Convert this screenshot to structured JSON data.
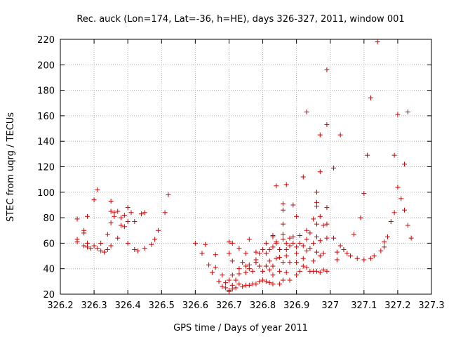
{
  "chart_data": {
    "type": "scatter",
    "title": "Rec. auck (Lon=174, Lat=-36, h=HE), days 326-327, 2011, window 001",
    "xlabel": "GPS time / Days of year 2011",
    "ylabel": "STEC from uqrg / TECUs",
    "xlim": [
      326.2,
      327.3
    ],
    "ylim": [
      20,
      220
    ],
    "xticks": [
      "326.2",
      "326.3",
      "326.4",
      "326.5",
      "326.6",
      "326.7",
      "326.8",
      "326.9",
      "327",
      "327.1",
      "327.2",
      "327.3"
    ],
    "yticks": [
      "20",
      "40",
      "60",
      "80",
      "100",
      "120",
      "140",
      "160",
      "180",
      "200",
      "220"
    ],
    "grid": true,
    "legend": "none",
    "marker": "plus",
    "color": "#d00000",
    "points": [
      [
        326.25,
        79
      ],
      [
        326.25,
        63
      ],
      [
        326.25,
        61
      ],
      [
        326.27,
        70
      ],
      [
        326.27,
        68
      ],
      [
        326.27,
        58
      ],
      [
        326.28,
        81
      ],
      [
        326.28,
        60
      ],
      [
        326.28,
        57
      ],
      [
        326.29,
        56
      ],
      [
        326.3,
        94
      ],
      [
        326.3,
        58
      ],
      [
        326.31,
        56
      ],
      [
        326.31,
        102
      ],
      [
        326.32,
        60
      ],
      [
        326.32,
        54
      ],
      [
        326.33,
        53
      ],
      [
        326.34,
        67
      ],
      [
        326.34,
        55
      ],
      [
        326.35,
        93
      ],
      [
        326.35,
        85
      ],
      [
        326.35,
        76
      ],
      [
        326.35,
        58
      ],
      [
        326.36,
        84
      ],
      [
        326.36,
        81
      ],
      [
        326.37,
        85
      ],
      [
        326.37,
        64
      ],
      [
        326.38,
        80
      ],
      [
        326.38,
        74
      ],
      [
        326.39,
        73
      ],
      [
        326.39,
        82
      ],
      [
        326.4,
        88
      ],
      [
        326.4,
        77
      ],
      [
        326.4,
        60
      ],
      [
        326.41,
        84
      ],
      [
        326.42,
        77
      ],
      [
        326.42,
        55
      ],
      [
        326.43,
        54
      ],
      [
        326.44,
        83
      ],
      [
        326.45,
        84
      ],
      [
        326.45,
        56
      ],
      [
        326.47,
        59
      ],
      [
        326.48,
        63
      ],
      [
        326.49,
        70
      ],
      [
        326.51,
        84
      ],
      [
        326.52,
        98
      ],
      [
        326.6,
        60
      ],
      [
        326.62,
        52
      ],
      [
        326.63,
        59
      ],
      [
        326.64,
        43
      ],
      [
        326.65,
        37
      ],
      [
        326.66,
        51
      ],
      [
        326.66,
        41
      ],
      [
        326.67,
        30
      ],
      [
        326.68,
        26
      ],
      [
        326.68,
        35
      ],
      [
        326.69,
        25
      ],
      [
        326.69,
        29
      ],
      [
        326.7,
        23
      ],
      [
        326.7,
        31
      ],
      [
        326.7,
        22
      ],
      [
        326.7,
        52
      ],
      [
        326.7,
        61
      ],
      [
        326.71,
        60
      ],
      [
        326.71,
        46
      ],
      [
        326.71,
        35
      ],
      [
        326.71,
        27
      ],
      [
        326.71,
        24
      ],
      [
        326.72,
        25
      ],
      [
        326.72,
        31
      ],
      [
        326.73,
        40
      ],
      [
        326.73,
        36
      ],
      [
        326.73,
        28
      ],
      [
        326.73,
        56
      ],
      [
        326.74,
        45
      ],
      [
        326.74,
        26
      ],
      [
        326.75,
        52
      ],
      [
        326.75,
        42
      ],
      [
        326.75,
        37
      ],
      [
        326.75,
        27
      ],
      [
        326.76,
        63
      ],
      [
        326.76,
        43
      ],
      [
        326.76,
        40
      ],
      [
        326.76,
        27
      ],
      [
        326.77,
        38
      ],
      [
        326.77,
        28
      ],
      [
        326.78,
        53
      ],
      [
        326.78,
        47
      ],
      [
        326.78,
        45
      ],
      [
        326.78,
        28
      ],
      [
        326.79,
        52
      ],
      [
        326.79,
        42
      ],
      [
        326.79,
        30
      ],
      [
        326.8,
        55
      ],
      [
        326.8,
        38
      ],
      [
        326.8,
        31
      ],
      [
        326.81,
        60
      ],
      [
        326.81,
        52
      ],
      [
        326.81,
        42
      ],
      [
        326.81,
        30
      ],
      [
        326.82,
        55
      ],
      [
        326.82,
        46
      ],
      [
        326.82,
        39
      ],
      [
        326.82,
        29
      ],
      [
        326.83,
        66
      ],
      [
        326.83,
        65
      ],
      [
        326.83,
        57
      ],
      [
        326.83,
        42
      ],
      [
        326.83,
        35
      ],
      [
        326.83,
        28
      ],
      [
        326.84,
        61
      ],
      [
        326.84,
        60
      ],
      [
        326.84,
        48
      ],
      [
        326.84,
        105
      ],
      [
        326.85,
        55
      ],
      [
        326.85,
        49
      ],
      [
        326.85,
        38
      ],
      [
        326.85,
        28
      ],
      [
        326.86,
        91
      ],
      [
        326.86,
        86
      ],
      [
        326.86,
        75
      ],
      [
        326.86,
        63
      ],
      [
        326.86,
        67
      ],
      [
        326.86,
        45
      ],
      [
        326.86,
        31
      ],
      [
        326.87,
        106
      ],
      [
        326.87,
        60
      ],
      [
        326.87,
        55
      ],
      [
        326.87,
        50
      ],
      [
        326.87,
        37
      ],
      [
        326.88,
        64
      ],
      [
        326.88,
        58
      ],
      [
        326.88,
        45
      ],
      [
        326.88,
        31
      ],
      [
        326.89,
        90
      ],
      [
        326.89,
        65
      ],
      [
        326.89,
        60
      ],
      [
        326.9,
        57
      ],
      [
        326.9,
        52
      ],
      [
        326.9,
        45
      ],
      [
        326.9,
        35
      ],
      [
        326.9,
        81
      ],
      [
        326.91,
        66
      ],
      [
        326.91,
        60
      ],
      [
        326.91,
        38
      ],
      [
        326.92,
        112
      ],
      [
        326.92,
        58
      ],
      [
        326.92,
        48
      ],
      [
        326.92,
        42
      ],
      [
        326.93,
        163
      ],
      [
        326.93,
        70
      ],
      [
        326.93,
        63
      ],
      [
        326.93,
        54
      ],
      [
        326.93,
        41
      ],
      [
        326.94,
        68
      ],
      [
        326.94,
        56
      ],
      [
        326.94,
        38
      ],
      [
        326.95,
        79
      ],
      [
        326.95,
        60
      ],
      [
        326.95,
        46
      ],
      [
        326.95,
        38
      ],
      [
        326.96,
        100
      ],
      [
        326.96,
        92
      ],
      [
        326.96,
        89
      ],
      [
        326.96,
        75
      ],
      [
        326.96,
        65
      ],
      [
        326.96,
        53
      ],
      [
        326.96,
        38
      ],
      [
        326.97,
        145
      ],
      [
        326.97,
        116
      ],
      [
        326.97,
        81
      ],
      [
        326.97,
        62
      ],
      [
        326.97,
        50
      ],
      [
        326.97,
        37
      ],
      [
        326.98,
        74
      ],
      [
        326.98,
        52
      ],
      [
        326.98,
        39
      ],
      [
        326.99,
        196
      ],
      [
        326.99,
        153
      ],
      [
        326.99,
        88
      ],
      [
        326.99,
        75
      ],
      [
        326.99,
        64
      ],
      [
        326.99,
        38
      ],
      [
        327.01,
        119
      ],
      [
        327.01,
        64
      ],
      [
        327.02,
        53
      ],
      [
        327.02,
        47
      ],
      [
        327.03,
        145
      ],
      [
        327.03,
        58
      ],
      [
        327.04,
        55
      ],
      [
        327.05,
        52
      ],
      [
        327.06,
        50
      ],
      [
        327.07,
        67
      ],
      [
        327.08,
        48
      ],
      [
        327.09,
        80
      ],
      [
        327.1,
        99
      ],
      [
        327.1,
        47
      ],
      [
        327.11,
        129
      ],
      [
        327.12,
        48
      ],
      [
        327.12,
        174
      ],
      [
        327.13,
        50
      ],
      [
        327.14,
        218
      ],
      [
        327.15,
        54
      ],
      [
        327.16,
        57
      ],
      [
        327.16,
        61
      ],
      [
        327.17,
        65
      ],
      [
        327.18,
        77
      ],
      [
        327.19,
        84
      ],
      [
        327.19,
        129
      ],
      [
        327.2,
        161
      ],
      [
        327.2,
        104
      ],
      [
        327.21,
        95
      ],
      [
        327.22,
        122
      ],
      [
        327.22,
        86
      ],
      [
        327.23,
        163
      ],
      [
        327.23,
        74
      ],
      [
        327.24,
        64
      ]
    ]
  }
}
